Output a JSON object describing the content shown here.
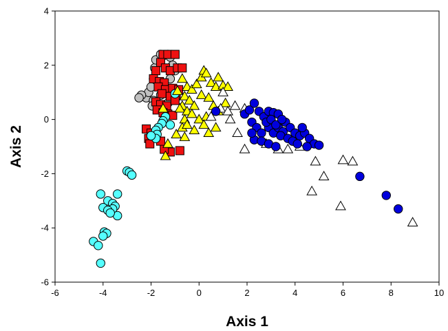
{
  "chart_data": {
    "type": "scatter",
    "title": "",
    "xlabel": "Axis 1",
    "ylabel": "Axis 2",
    "xlim": [
      -6,
      10
    ],
    "ylim": [
      -6,
      4
    ],
    "xticks": [
      -6,
      -4,
      -2,
      0,
      2,
      4,
      6,
      8,
      10
    ],
    "yticks": [
      -6,
      -4,
      -2,
      0,
      2,
      4
    ],
    "grid": false,
    "legend": "none",
    "series": [
      {
        "marker": "circle",
        "fill": "#c0c0c0",
        "points": [
          [
            -2.2,
            0.8
          ],
          [
            -2.1,
            1.0
          ],
          [
            -2.0,
            1.2
          ],
          [
            -1.9,
            1.5
          ],
          [
            -1.85,
            1.9
          ],
          [
            -1.8,
            2.2
          ],
          [
            -1.6,
            2.4
          ],
          [
            -1.5,
            2.35
          ],
          [
            -1.3,
            2.4
          ],
          [
            -1.2,
            2.3
          ],
          [
            -1.1,
            2.0
          ],
          [
            -1.0,
            1.8
          ],
          [
            -1.2,
            1.5
          ],
          [
            -1.4,
            1.2
          ],
          [
            -1.6,
            0.9
          ],
          [
            -1.9,
            0.7
          ],
          [
            -2.4,
            0.9
          ],
          [
            -2.5,
            0.8
          ],
          [
            -1.95,
            0.5
          ],
          [
            -1.7,
            0.4
          ],
          [
            -1.3,
            0.6
          ]
        ]
      },
      {
        "marker": "square",
        "fill": "#ee1111",
        "points": [
          [
            -1.5,
            2.4
          ],
          [
            -1.3,
            2.4
          ],
          [
            -1.0,
            2.4
          ],
          [
            -1.6,
            2.1
          ],
          [
            -1.4,
            1.9
          ],
          [
            -1.8,
            1.8
          ],
          [
            -1.2,
            1.8
          ],
          [
            -0.9,
            1.9
          ],
          [
            -0.7,
            1.9
          ],
          [
            -1.9,
            1.5
          ],
          [
            -1.65,
            1.4
          ],
          [
            -1.45,
            1.35
          ],
          [
            -1.7,
            1.2
          ],
          [
            -1.4,
            1.1
          ],
          [
            -1.1,
            1.15
          ],
          [
            -0.85,
            1.1
          ],
          [
            -1.55,
            0.95
          ],
          [
            -1.2,
            0.85
          ],
          [
            -0.95,
            0.9
          ],
          [
            -1.8,
            0.65
          ],
          [
            -1.6,
            0.55
          ],
          [
            -1.35,
            0.5
          ],
          [
            -1.0,
            0.7
          ],
          [
            -1.75,
            0.35
          ],
          [
            -1.5,
            0.25
          ],
          [
            -1.3,
            0.2
          ],
          [
            -1.1,
            0.15
          ],
          [
            -2.2,
            -0.35
          ],
          [
            -2.0,
            -0.5
          ],
          [
            -2.1,
            -0.7
          ],
          [
            -1.8,
            -0.6
          ],
          [
            -2.05,
            -0.9
          ],
          [
            -1.2,
            -1.2
          ],
          [
            -0.8,
            -1.15
          ],
          [
            -1.45,
            -1.1
          ],
          [
            -1.6,
            -0.8
          ]
        ]
      },
      {
        "marker": "circle",
        "fill": "#55ffff",
        "points": [
          [
            -1.0,
            0.95
          ],
          [
            -1.4,
            0.1
          ],
          [
            -1.5,
            -0.05
          ],
          [
            -1.55,
            -0.15
          ],
          [
            -1.7,
            -0.3
          ],
          [
            -1.8,
            -0.4
          ],
          [
            -1.75,
            -0.55
          ],
          [
            -1.8,
            -0.7
          ],
          [
            -2.0,
            -0.6
          ],
          [
            -1.2,
            -0.2
          ],
          [
            -3.0,
            -1.9
          ],
          [
            -2.9,
            -1.95
          ],
          [
            -2.8,
            -2.05
          ],
          [
            -4.1,
            -2.75
          ],
          [
            -3.8,
            -3.0
          ],
          [
            -3.6,
            -3.1
          ],
          [
            -3.5,
            -3.2
          ],
          [
            -3.4,
            -2.75
          ],
          [
            -3.6,
            -3.3
          ],
          [
            -4.0,
            -3.25
          ],
          [
            -3.8,
            -3.35
          ],
          [
            -3.4,
            -3.55
          ],
          [
            -3.7,
            -3.45
          ],
          [
            -3.95,
            -4.15
          ],
          [
            -3.85,
            -4.2
          ],
          [
            -4.0,
            -4.3
          ],
          [
            -4.4,
            -4.5
          ],
          [
            -4.2,
            -4.65
          ],
          [
            -4.1,
            -5.3
          ]
        ]
      },
      {
        "marker": "triangle",
        "fill": "#ffff00",
        "points": [
          [
            -0.7,
            1.5
          ],
          [
            -0.5,
            1.2
          ],
          [
            -0.3,
            1.1
          ],
          [
            -0.9,
            1.05
          ],
          [
            -0.6,
            0.85
          ],
          [
            -0.4,
            0.7
          ],
          [
            -0.7,
            0.5
          ],
          [
            -0.2,
            0.5
          ],
          [
            -0.8,
            0.4
          ],
          [
            -0.5,
            0.3
          ],
          [
            -0.3,
            0.2
          ],
          [
            -0.6,
            0.0
          ],
          [
            -0.7,
            -0.3
          ],
          [
            -0.5,
            -0.2
          ],
          [
            -0.2,
            -0.4
          ],
          [
            -0.6,
            -0.65
          ],
          [
            -0.95,
            -0.55
          ],
          [
            -1.3,
            -0.9
          ],
          [
            -1.4,
            -1.35
          ],
          [
            -1.5,
            0.4
          ],
          [
            -0.1,
            1.3
          ],
          [
            0.1,
            1.55
          ],
          [
            0.2,
            1.8
          ],
          [
            0.3,
            1.7
          ],
          [
            0.5,
            1.35
          ],
          [
            0.7,
            1.2
          ],
          [
            0.8,
            1.55
          ],
          [
            1.0,
            1.25
          ],
          [
            0.1,
            0.9
          ],
          [
            0.4,
            0.8
          ],
          [
            0.6,
            0.5
          ],
          [
            0.8,
            0.3
          ],
          [
            0.3,
            0.1
          ],
          [
            0.0,
            0.0
          ],
          [
            0.2,
            -0.2
          ],
          [
            0.4,
            -0.5
          ],
          [
            0.7,
            -0.3
          ],
          [
            1.1,
            0.6
          ],
          [
            1.2,
            1.2
          ]
        ]
      },
      {
        "marker": "triangle",
        "fill": "#ffffff",
        "points": [
          [
            1.0,
            1.0
          ],
          [
            0.5,
            0.1
          ],
          [
            0.9,
            0.4
          ],
          [
            1.2,
            0.3
          ],
          [
            1.5,
            0.5
          ],
          [
            1.9,
            0.4
          ],
          [
            1.3,
            0.0
          ],
          [
            1.6,
            -0.5
          ],
          [
            1.9,
            -1.1
          ],
          [
            2.4,
            -0.6
          ],
          [
            2.8,
            -0.9
          ],
          [
            3.3,
            -1.1
          ],
          [
            3.7,
            -1.1
          ],
          [
            4.2,
            -1.0
          ],
          [
            4.6,
            -0.9
          ],
          [
            4.85,
            -1.55
          ],
          [
            5.2,
            -2.1
          ],
          [
            4.7,
            -2.65
          ],
          [
            6.0,
            -1.5
          ],
          [
            6.4,
            -1.55
          ],
          [
            5.9,
            -3.2
          ],
          [
            8.9,
            -3.8
          ]
        ]
      },
      {
        "marker": "circle",
        "fill": "#0000dd",
        "points": [
          [
            0.7,
            0.3
          ],
          [
            1.9,
            0.2
          ],
          [
            2.1,
            0.35
          ],
          [
            2.3,
            0.6
          ],
          [
            2.5,
            0.3
          ],
          [
            2.7,
            0.1
          ],
          [
            2.9,
            0.3
          ],
          [
            3.1,
            0.25
          ],
          [
            3.3,
            0.2
          ],
          [
            2.2,
            -0.1
          ],
          [
            2.4,
            -0.3
          ],
          [
            2.6,
            -0.5
          ],
          [
            2.9,
            -0.3
          ],
          [
            3.1,
            -0.5
          ],
          [
            3.3,
            -0.3
          ],
          [
            3.5,
            -0.45
          ],
          [
            3.6,
            -0.1
          ],
          [
            3.8,
            -0.3
          ],
          [
            4.0,
            -0.5
          ],
          [
            4.2,
            -0.6
          ],
          [
            4.4,
            -0.5
          ],
          [
            4.6,
            -0.7
          ],
          [
            4.8,
            -0.9
          ],
          [
            5.0,
            -0.95
          ],
          [
            2.8,
            -0.1
          ],
          [
            3.0,
            0.0
          ],
          [
            3.2,
            -0.2
          ],
          [
            3.4,
            -0.6
          ],
          [
            3.7,
            -0.7
          ],
          [
            3.9,
            -0.8
          ],
          [
            4.1,
            -0.9
          ],
          [
            4.5,
            -1.0
          ],
          [
            2.3,
            -0.75
          ],
          [
            2.6,
            -0.8
          ],
          [
            2.9,
            -0.9
          ],
          [
            3.2,
            -1.0
          ],
          [
            2.2,
            -0.5
          ],
          [
            3.45,
            0.0
          ],
          [
            4.3,
            -0.3
          ],
          [
            6.7,
            -2.1
          ],
          [
            7.8,
            -2.8
          ],
          [
            8.3,
            -3.3
          ]
        ]
      }
    ]
  }
}
